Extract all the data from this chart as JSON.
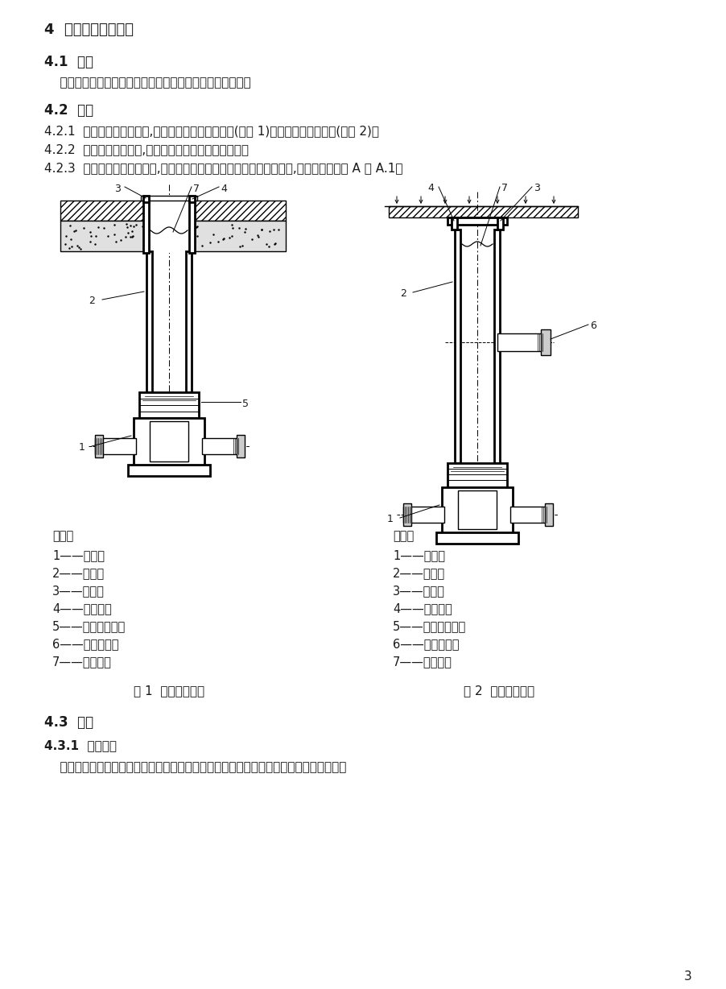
{
  "bg_color": "#ffffff",
  "text_color": "#1a1a1a",
  "page_number": "3",
  "section4_title": "4  构造、分类及标记",
  "section41_title": "4.1  构造",
  "section41_body": "    检查井由井座、井筒、防人坠落装置和井盖及其配件组成。",
  "section42_title": "4.2  分类",
  "section421": "4.2.1  按井座构造形式不同,检查井分为流槽式检查井(见图 1)和沉泥室检查井两种(见图 2)。",
  "section422": "4.2.2  按检查井功能不同,分为普通井、水封井和跌水井。",
  "section423": "4.2.3  按照井座外部形状不同,分为直通井、弯头井、三通井、四通井等,示意图参见附录 A 表 A.1。",
  "fig1_caption": "图 1  流槽式检查井",
  "fig2_caption": "图 2  沉泥室检查井",
  "legend_title": "说明：",
  "legend_items": [
    "1——井座；",
    "2——井筒；",
    "3——井盖；",
    "4——井盖座；",
    "5——井筒多头接；",
    "6——马鞍接头；",
    "7——防坠网。"
  ],
  "section43_title": "4.3  标记",
  "section431_title": "4.3.1  标记组成",
  "section431_body": "    检查井标记由井座构造、井座形状、井座连接井筒直径、汇入管管径和流出管管径组成。"
}
